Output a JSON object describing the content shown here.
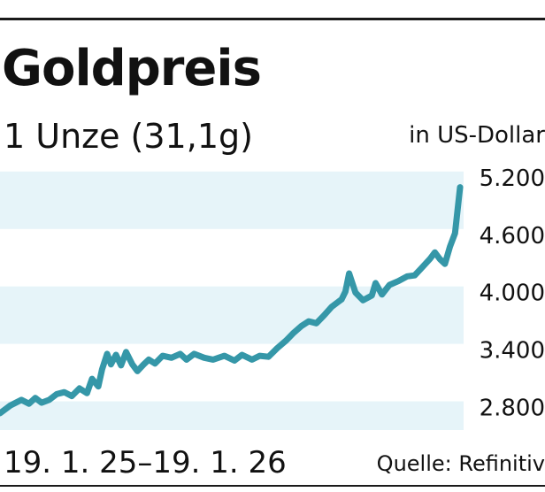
{
  "header": {
    "title": "Goldpreis",
    "subtitle": "1 Unze (31,1g)",
    "unit": "in US-Dollar"
  },
  "footer": {
    "date_range": "19. 1. 25–19. 1. 26",
    "source": "Quelle: Refinitiv"
  },
  "colors": {
    "line": "#3597a8",
    "band": "#e6f4f9",
    "text": "#111111",
    "rule": "#1a1a1a"
  },
  "chart_data": {
    "type": "line",
    "title": "Goldpreis",
    "subtitle": "1 Unze (31,1g)",
    "ylabel": "in US-Dollar",
    "ylim": [
      2500,
      5300
    ],
    "yticks": [
      2800,
      3400,
      4000,
      4600,
      5200
    ],
    "ytick_labels": [
      "2.800",
      "3.400",
      "4.000",
      "4.600",
      "5.200"
    ],
    "xlim": [
      "2025-01-19",
      "2026-01-19"
    ],
    "grid_bands": true,
    "series": [
      {
        "x": [
          "2025-01-19",
          "2025-01-27",
          "2025-02-05",
          "2025-02-11",
          "2025-02-16",
          "2025-02-21",
          "2025-02-27",
          "2025-03-05",
          "2025-03-11",
          "2025-03-17",
          "2025-03-23",
          "2025-03-29",
          "2025-04-02",
          "2025-04-07",
          "2025-04-10",
          "2025-04-14",
          "2025-04-17",
          "2025-04-21",
          "2025-04-25",
          "2025-04-29",
          "2025-05-04",
          "2025-05-08",
          "2025-05-13",
          "2025-05-17",
          "2025-05-22",
          "2025-05-28",
          "2025-06-04",
          "2025-06-11",
          "2025-06-16",
          "2025-06-22",
          "2025-06-30",
          "2025-07-07",
          "2025-07-16",
          "2025-07-24",
          "2025-07-30",
          "2025-08-07",
          "2025-08-13",
          "2025-08-20",
          "2025-08-27",
          "2025-09-03",
          "2025-09-09",
          "2025-09-15",
          "2025-09-21",
          "2025-09-27",
          "2025-10-03",
          "2025-10-09",
          "2025-10-14",
          "2025-10-17",
          "2025-10-20",
          "2025-10-23",
          "2025-10-28",
          "2025-11-03",
          "2025-11-10",
          "2025-11-13",
          "2025-11-18",
          "2025-11-24",
          "2025-12-01",
          "2025-12-08",
          "2025-12-14",
          "2025-12-19",
          "2025-12-26",
          "2025-12-30",
          "2026-01-03",
          "2026-01-07",
          "2026-01-11",
          "2026-01-15",
          "2026-01-19"
        ],
        "y": [
          2740,
          2820,
          2880,
          2840,
          2900,
          2850,
          2880,
          2940,
          2960,
          2920,
          3000,
          2950,
          3100,
          3020,
          3200,
          3360,
          3250,
          3350,
          3240,
          3380,
          3250,
          3180,
          3250,
          3300,
          3260,
          3340,
          3320,
          3360,
          3300,
          3360,
          3320,
          3300,
          3340,
          3290,
          3350,
          3300,
          3340,
          3330,
          3420,
          3500,
          3580,
          3650,
          3700,
          3680,
          3760,
          3850,
          3900,
          3930,
          4010,
          4200,
          4000,
          3920,
          3970,
          4100,
          3980,
          4080,
          4120,
          4170,
          4180,
          4250,
          4350,
          4420,
          4350,
          4300,
          4480,
          4620,
          5100
        ]
      }
    ]
  }
}
